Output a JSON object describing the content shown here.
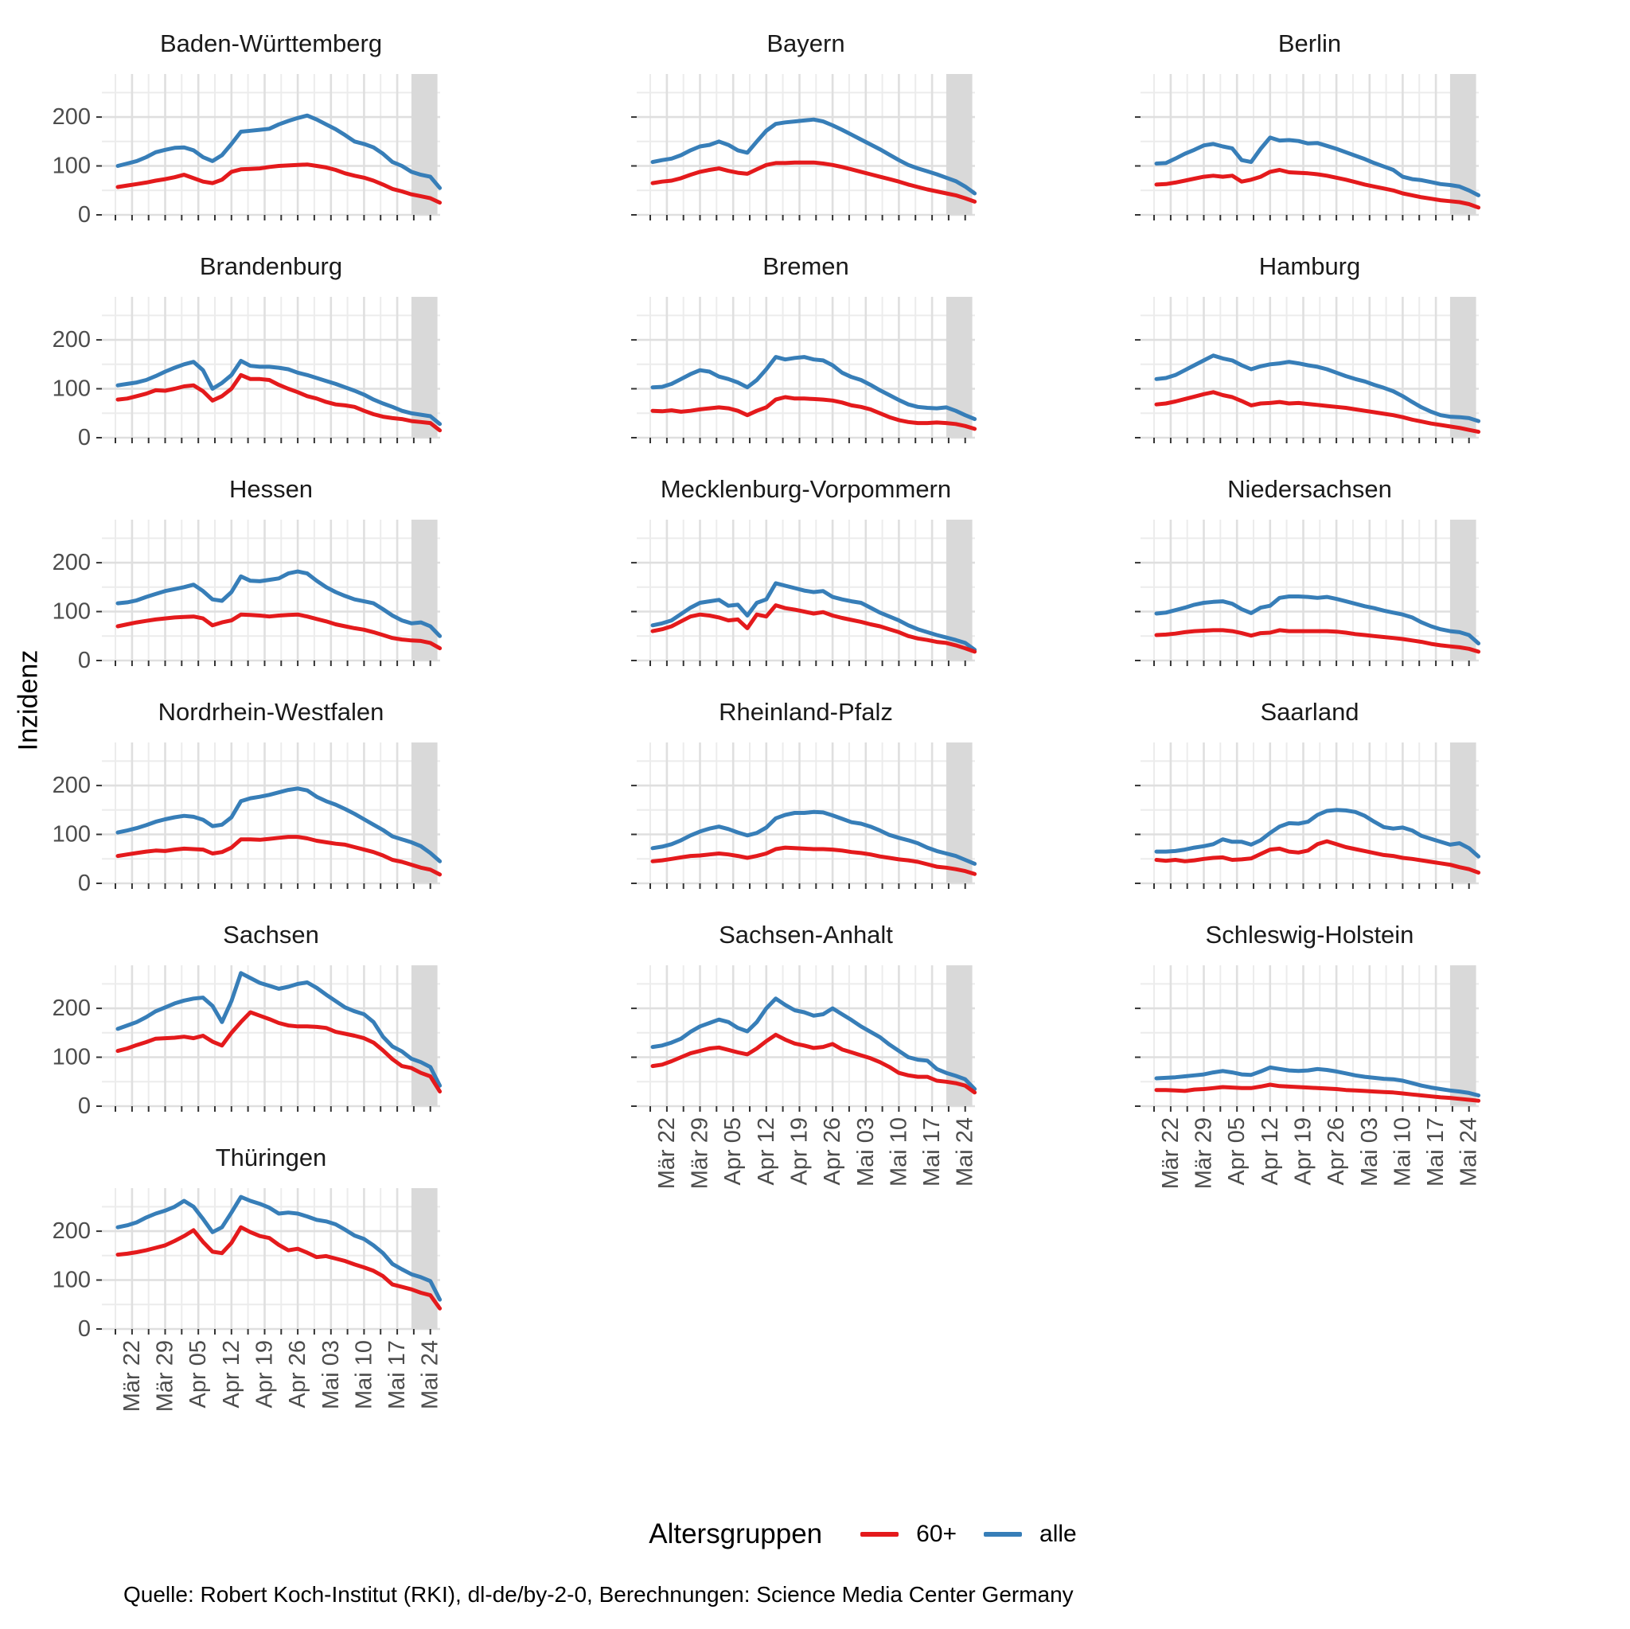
{
  "figure": {
    "ylabel": "Inzidenz",
    "legend": {
      "title": "Altersgruppen",
      "items": [
        {
          "label": "60+",
          "color": "#E41A1C"
        },
        {
          "label": "alle",
          "color": "#377EB8"
        }
      ]
    },
    "caption": "Quelle: Robert Koch-Institut (RKI), dl-de/by-2-0, Berechnungen: Science Media Center Germany"
  },
  "chart_data": {
    "type": "line",
    "title": "",
    "ylabel": "Inzidenz",
    "ylim": [
      0,
      288
    ],
    "y_ticks": [
      0,
      100,
      200
    ],
    "grid": true,
    "legend_position": "bottom",
    "x_tick_labels": [
      "Mär 22",
      "Mär 29",
      "Apr 05",
      "Apr 12",
      "Apr 19",
      "Apr 26",
      "Mai 03",
      "Mai 10",
      "Mai 17",
      "Mai 24"
    ],
    "x_tick_days": [
      3,
      10,
      17,
      24,
      31,
      38,
      45,
      52,
      59,
      66
    ],
    "x_minor_days": [
      -0.5,
      6.5,
      13.5,
      20.5,
      27.5,
      34.5,
      41.5,
      48.5,
      55.5,
      62.5
    ],
    "y_minor_vals": [
      50,
      150,
      250
    ],
    "x_days": [
      0,
      2,
      4,
      6,
      8,
      10,
      12,
      14,
      16,
      18,
      20,
      22,
      24,
      26,
      28,
      30,
      32,
      34,
      36,
      38,
      40,
      42,
      44,
      46,
      48,
      50,
      52,
      54,
      56,
      58,
      60,
      62,
      64,
      66,
      68
    ],
    "provisional_band_days": [
      62,
      67.5
    ],
    "band_color": "#D9D9D9",
    "grid_minor_color": "#ECECEC",
    "grid_major_color": "#DFDFDF",
    "tick_color": "#333333",
    "tick_label_color": "#4D4D4D",
    "series_meta": [
      {
        "key": "p60",
        "name": "60+",
        "color": "#E41A1C"
      },
      {
        "key": "alle",
        "name": "alle",
        "color": "#377EB8"
      }
    ],
    "facets": [
      {
        "state": "Baden-Württemberg",
        "alle": [
          100,
          105,
          110,
          118,
          128,
          133,
          137,
          138,
          132,
          118,
          110,
          122,
          145,
          170,
          172,
          174,
          176,
          185,
          192,
          198,
          203,
          195,
          185,
          175,
          163,
          150,
          145,
          138,
          125,
          108,
          100,
          88,
          82,
          78,
          55
        ],
        "p60": [
          57,
          60,
          63,
          66,
          70,
          73,
          77,
          82,
          75,
          68,
          65,
          72,
          88,
          93,
          94,
          95,
          98,
          100,
          101,
          102,
          103,
          100,
          97,
          92,
          85,
          80,
          76,
          70,
          62,
          53,
          48,
          42,
          38,
          34,
          25
        ]
      },
      {
        "state": "Bayern",
        "alle": [
          108,
          112,
          115,
          122,
          132,
          140,
          143,
          150,
          143,
          132,
          127,
          150,
          172,
          186,
          189,
          191,
          193,
          195,
          191,
          183,
          174,
          164,
          154,
          144,
          134,
          123,
          112,
          102,
          95,
          89,
          83,
          76,
          69,
          58,
          44
        ],
        "p60": [
          65,
          68,
          70,
          75,
          82,
          88,
          92,
          95,
          90,
          86,
          84,
          93,
          102,
          106,
          106,
          107,
          107,
          107,
          105,
          102,
          98,
          93,
          88,
          83,
          78,
          73,
          68,
          62,
          57,
          52,
          48,
          44,
          40,
          34,
          27
        ]
      },
      {
        "state": "Berlin",
        "alle": [
          105,
          106,
          115,
          125,
          133,
          142,
          145,
          140,
          136,
          112,
          108,
          135,
          158,
          152,
          153,
          151,
          146,
          147,
          141,
          135,
          128,
          121,
          114,
          106,
          99,
          92,
          78,
          73,
          71,
          67,
          63,
          61,
          58,
          50,
          40
        ],
        "p60": [
          62,
          63,
          66,
          70,
          74,
          78,
          80,
          78,
          80,
          68,
          72,
          78,
          88,
          92,
          87,
          86,
          85,
          83,
          80,
          76,
          72,
          67,
          62,
          58,
          54,
          50,
          44,
          40,
          36,
          33,
          30,
          28,
          26,
          22,
          15
        ]
      },
      {
        "state": "Brandenburg",
        "alle": [
          107,
          110,
          113,
          118,
          126,
          135,
          143,
          150,
          155,
          138,
          100,
          112,
          128,
          157,
          147,
          145,
          145,
          143,
          140,
          133,
          128,
          122,
          116,
          110,
          103,
          96,
          88,
          78,
          70,
          63,
          55,
          50,
          47,
          44,
          28
        ],
        "p60": [
          78,
          80,
          85,
          90,
          97,
          96,
          100,
          105,
          107,
          95,
          76,
          85,
          100,
          128,
          120,
          120,
          118,
          108,
          100,
          93,
          85,
          80,
          73,
          68,
          66,
          63,
          55,
          48,
          43,
          40,
          38,
          34,
          32,
          30,
          15
        ]
      },
      {
        "state": "Bremen",
        "alle": [
          103,
          104,
          110,
          120,
          130,
          138,
          135,
          125,
          120,
          113,
          103,
          118,
          140,
          165,
          160,
          163,
          165,
          160,
          158,
          148,
          133,
          124,
          118,
          108,
          97,
          87,
          77,
          68,
          63,
          61,
          60,
          62,
          55,
          46,
          38
        ],
        "p60": [
          55,
          54,
          56,
          53,
          55,
          58,
          60,
          62,
          60,
          55,
          46,
          55,
          62,
          78,
          83,
          80,
          80,
          79,
          78,
          76,
          72,
          66,
          63,
          58,
          50,
          42,
          36,
          32,
          30,
          30,
          31,
          30,
          28,
          24,
          18
        ]
      },
      {
        "state": "Hamburg",
        "alle": [
          120,
          122,
          128,
          138,
          148,
          158,
          168,
          162,
          158,
          148,
          140,
          146,
          150,
          152,
          155,
          152,
          148,
          145,
          140,
          133,
          126,
          120,
          115,
          108,
          102,
          95,
          85,
          73,
          62,
          53,
          46,
          43,
          42,
          40,
          34
        ],
        "p60": [
          68,
          70,
          74,
          79,
          84,
          89,
          93,
          87,
          83,
          75,
          66,
          70,
          71,
          73,
          70,
          71,
          69,
          67,
          65,
          63,
          61,
          58,
          55,
          52,
          49,
          46,
          42,
          37,
          33,
          29,
          26,
          23,
          20,
          16,
          12
        ]
      },
      {
        "state": "Hessen",
        "alle": [
          117,
          119,
          123,
          130,
          136,
          142,
          146,
          150,
          155,
          142,
          125,
          122,
          140,
          172,
          163,
          162,
          165,
          168,
          178,
          182,
          178,
          163,
          150,
          140,
          132,
          125,
          121,
          117,
          105,
          92,
          82,
          76,
          78,
          70,
          50
        ],
        "p60": [
          70,
          74,
          78,
          81,
          84,
          86,
          88,
          89,
          90,
          86,
          72,
          78,
          82,
          94,
          93,
          92,
          90,
          92,
          93,
          94,
          90,
          85,
          80,
          74,
          70,
          66,
          63,
          58,
          52,
          46,
          43,
          41,
          40,
          36,
          25
        ]
      },
      {
        "state": "Mecklenburg-Vorpommern",
        "alle": [
          72,
          76,
          82,
          95,
          108,
          118,
          121,
          124,
          112,
          114,
          92,
          118,
          125,
          158,
          153,
          148,
          143,
          140,
          142,
          130,
          125,
          121,
          118,
          108,
          98,
          90,
          82,
          72,
          64,
          58,
          52,
          47,
          42,
          36,
          22
        ],
        "p60": [
          60,
          64,
          70,
          80,
          90,
          94,
          92,
          88,
          82,
          84,
          66,
          94,
          90,
          113,
          107,
          104,
          100,
          96,
          99,
          92,
          87,
          83,
          79,
          74,
          70,
          64,
          58,
          50,
          45,
          42,
          38,
          36,
          31,
          25,
          18
        ]
      },
      {
        "state": "Niedersachsen",
        "alle": [
          96,
          98,
          103,
          108,
          114,
          118,
          120,
          121,
          116,
          105,
          97,
          108,
          112,
          128,
          131,
          131,
          130,
          128,
          130,
          126,
          121,
          116,
          111,
          107,
          102,
          98,
          94,
          88,
          78,
          70,
          64,
          60,
          58,
          52,
          35
        ],
        "p60": [
          52,
          53,
          55,
          58,
          60,
          61,
          62,
          62,
          60,
          56,
          51,
          56,
          57,
          62,
          60,
          60,
          60,
          60,
          60,
          59,
          57,
          54,
          52,
          50,
          48,
          46,
          44,
          41,
          38,
          34,
          31,
          29,
          27,
          24,
          18
        ]
      },
      {
        "state": "Nordrhein-Westfalen",
        "alle": [
          104,
          108,
          113,
          119,
          126,
          131,
          135,
          138,
          136,
          130,
          117,
          120,
          135,
          168,
          174,
          177,
          181,
          186,
          191,
          194,
          190,
          177,
          168,
          161,
          152,
          142,
          131,
          120,
          109,
          96,
          90,
          84,
          76,
          62,
          45
        ],
        "p60": [
          56,
          59,
          62,
          65,
          67,
          66,
          69,
          71,
          70,
          69,
          61,
          64,
          73,
          90,
          90,
          89,
          91,
          93,
          95,
          95,
          92,
          87,
          84,
          81,
          79,
          74,
          69,
          64,
          57,
          48,
          44,
          38,
          32,
          28,
          18
        ]
      },
      {
        "state": "Rheinland-Pfalz",
        "alle": [
          72,
          75,
          80,
          88,
          98,
          106,
          112,
          116,
          111,
          104,
          98,
          103,
          114,
          133,
          140,
          144,
          144,
          146,
          145,
          139,
          132,
          125,
          122,
          116,
          108,
          99,
          93,
          88,
          82,
          73,
          66,
          61,
          56,
          48,
          40
        ],
        "p60": [
          45,
          47,
          50,
          53,
          56,
          57,
          59,
          61,
          59,
          56,
          52,
          56,
          61,
          70,
          73,
          72,
          71,
          70,
          70,
          69,
          67,
          64,
          62,
          59,
          55,
          52,
          49,
          47,
          44,
          39,
          34,
          32,
          29,
          25,
          19
        ]
      },
      {
        "state": "Saarland",
        "alle": [
          65,
          65,
          66,
          69,
          73,
          76,
          80,
          90,
          85,
          85,
          79,
          88,
          103,
          116,
          123,
          122,
          126,
          140,
          148,
          150,
          149,
          146,
          138,
          126,
          115,
          112,
          114,
          108,
          97,
          91,
          85,
          79,
          82,
          72,
          55
        ],
        "p60": [
          48,
          46,
          48,
          45,
          47,
          50,
          52,
          53,
          48,
          49,
          51,
          60,
          69,
          71,
          65,
          63,
          67,
          80,
          86,
          80,
          74,
          70,
          66,
          62,
          58,
          56,
          52,
          50,
          47,
          44,
          41,
          38,
          33,
          29,
          22
        ]
      },
      {
        "state": "Sachsen",
        "alle": [
          158,
          165,
          172,
          182,
          194,
          202,
          210,
          216,
          220,
          222,
          205,
          172,
          215,
          272,
          262,
          252,
          246,
          240,
          244,
          250,
          253,
          242,
          228,
          215,
          202,
          194,
          188,
          172,
          142,
          122,
          112,
          97,
          90,
          80,
          42
        ],
        "p60": [
          113,
          118,
          125,
          131,
          138,
          139,
          140,
          142,
          139,
          144,
          132,
          124,
          150,
          172,
          192,
          185,
          178,
          170,
          165,
          163,
          163,
          162,
          160,
          152,
          148,
          144,
          139,
          130,
          114,
          96,
          82,
          78,
          68,
          61,
          30
        ]
      },
      {
        "state": "Sachsen-Anhalt",
        "alle": [
          121,
          124,
          130,
          138,
          152,
          163,
          170,
          177,
          172,
          160,
          153,
          172,
          200,
          220,
          207,
          196,
          192,
          185,
          188,
          200,
          188,
          176,
          163,
          152,
          141,
          126,
          113,
          100,
          95,
          93,
          76,
          68,
          62,
          55,
          35
        ],
        "p60": [
          82,
          85,
          92,
          100,
          108,
          113,
          118,
          120,
          115,
          110,
          106,
          118,
          133,
          146,
          136,
          128,
          124,
          119,
          121,
          127,
          116,
          110,
          104,
          98,
          90,
          80,
          68,
          63,
          60,
          60,
          52,
          50,
          47,
          42,
          28
        ]
      },
      {
        "state": "Schleswig-Holstein",
        "alle": [
          57,
          58,
          59,
          61,
          63,
          65,
          69,
          72,
          69,
          65,
          64,
          71,
          79,
          76,
          73,
          72,
          73,
          76,
          74,
          71,
          67,
          63,
          60,
          58,
          56,
          55,
          52,
          47,
          42,
          38,
          35,
          32,
          30,
          27,
          22
        ],
        "p60": [
          33,
          33,
          32,
          31,
          34,
          35,
          37,
          39,
          38,
          37,
          37,
          40,
          44,
          41,
          40,
          39,
          38,
          37,
          36,
          35,
          33,
          32,
          31,
          30,
          29,
          28,
          26,
          24,
          22,
          20,
          18,
          17,
          15,
          13,
          11
        ]
      },
      {
        "state": "Thüringen",
        "alle": [
          208,
          212,
          218,
          228,
          236,
          242,
          250,
          262,
          250,
          225,
          198,
          208,
          238,
          270,
          262,
          256,
          248,
          236,
          238,
          236,
          230,
          223,
          220,
          214,
          203,
          191,
          184,
          171,
          155,
          133,
          122,
          112,
          106,
          98,
          60
        ],
        "p60": [
          152,
          154,
          157,
          161,
          166,
          171,
          180,
          190,
          202,
          178,
          158,
          155,
          176,
          208,
          198,
          190,
          186,
          172,
          161,
          164,
          156,
          147,
          149,
          144,
          139,
          132,
          126,
          119,
          108,
          91,
          86,
          81,
          74,
          69,
          42
        ]
      }
    ]
  }
}
